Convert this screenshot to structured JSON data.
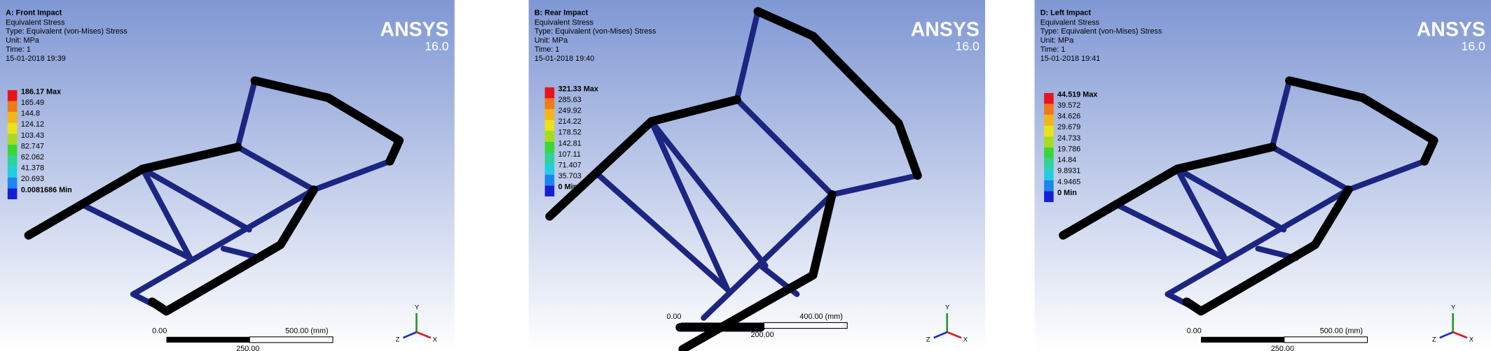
{
  "panels": [
    {
      "title": "A: Front Impact",
      "lines": [
        "Equivalent Stress",
        "Type: Equivalent (von-Mises) Stress",
        "Unit: MPa",
        "Time: 1",
        "15-01-2018 19:39"
      ],
      "legend": [
        "186.17 Max",
        "165.49",
        "144.8",
        "124.12",
        "103.43",
        "82.747",
        "62.062",
        "41.378",
        "20.693",
        "0.0081686 Min"
      ],
      "logo": "ANSYS",
      "version": "16.0",
      "scale": {
        "start": "0.00",
        "end": "500.00 (mm)",
        "mid": "250.00"
      },
      "axes": {
        "y": "Y",
        "z": "Z",
        "x": "X"
      }
    },
    {
      "title": "B: Rear Impact",
      "lines": [
        "Equivalent Stress",
        "Type: Equivalent (von-Mises) Stress",
        "Unit: MPa",
        "Time: 1",
        "15-01-2018 19:40"
      ],
      "legend": [
        "321.33 Max",
        "285.63",
        "249.92",
        "214.22",
        "178.52",
        "142.81",
        "107.11",
        "71.407",
        "35.703",
        "0 Min"
      ],
      "logo": "ANSYS",
      "version": "16.0",
      "scale": {
        "start": "0.00",
        "end": "400.00 (mm)",
        "mid": "200.00"
      },
      "axes": {
        "y": "Y",
        "z": "Z",
        "x": "X"
      }
    },
    {
      "title": "D: Left Impact",
      "lines": [
        "Equivalent Stress",
        "Type: Equivalent (von-Mises) Stress",
        "Unit: MPa",
        "Time: 1",
        "15-01-2018 19:41"
      ],
      "legend": [
        "44.519 Max",
        "39.572",
        "34.626",
        "29.679",
        "24.733",
        "19.786",
        "14.84",
        "9.8931",
        "4.9465",
        "0 Min"
      ],
      "logo": "ANSYS",
      "version": "16.0",
      "scale": {
        "start": "0.00",
        "end": "500.00 (mm)",
        "mid": "250.00"
      },
      "axes": {
        "y": "Y",
        "z": "Z",
        "x": "X"
      }
    }
  ]
}
